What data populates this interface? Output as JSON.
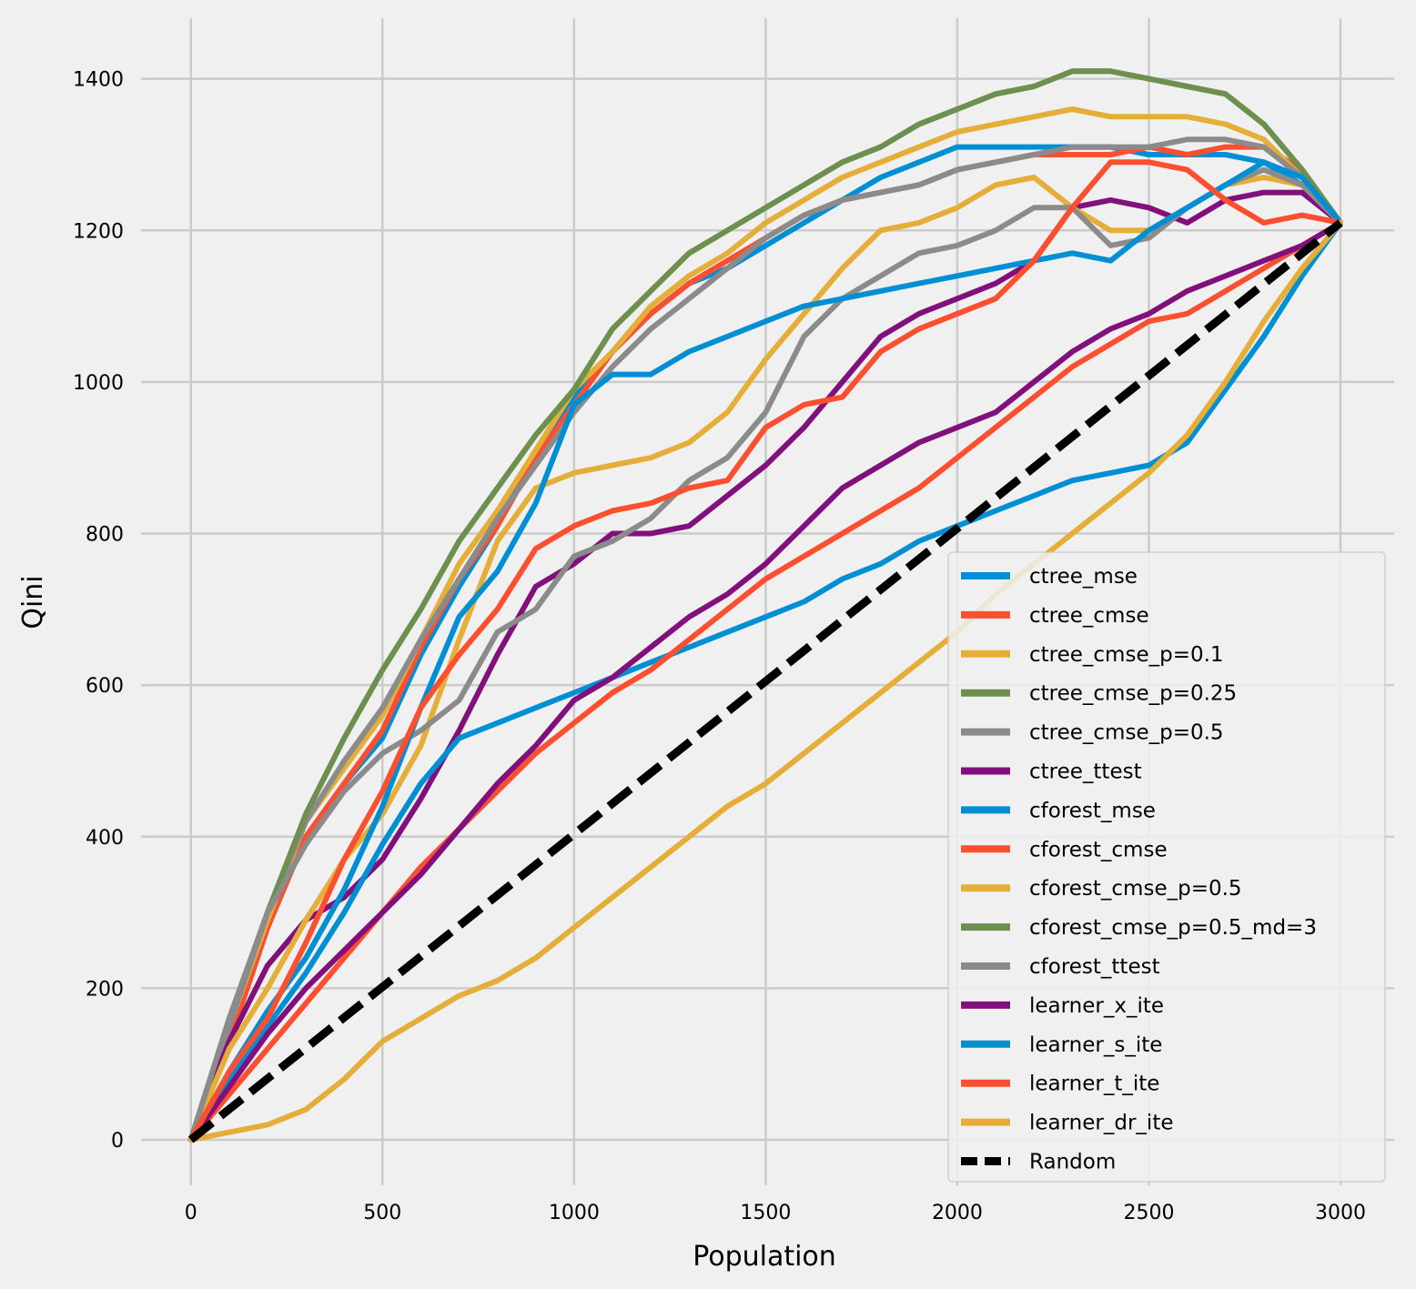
{
  "chart_data": {
    "type": "line",
    "title": "",
    "xlabel": "Population",
    "ylabel": "Qini",
    "xlim": [
      -130,
      3140
    ],
    "ylim": [
      -60,
      1480
    ],
    "xticks": [
      0,
      500,
      1000,
      1500,
      2000,
      2500,
      3000
    ],
    "yticks": [
      0,
      200,
      400,
      600,
      800,
      1000,
      1200,
      1400
    ],
    "grid": true,
    "legend_position": "lower right",
    "series": [
      {
        "name": "ctree_mse",
        "color": "#008fd5",
        "x": [
          0,
          100,
          200,
          300,
          400,
          500,
          600,
          700,
          800,
          900,
          1000,
          1100,
          1200,
          1300,
          1400,
          1500,
          1600,
          1700,
          1800,
          1900,
          2000,
          2100,
          2200,
          2300,
          2400,
          2500,
          2600,
          2700,
          2800,
          2900,
          3000
        ],
        "y": [
          0,
          130,
          280,
          400,
          470,
          530,
          640,
          730,
          810,
          910,
          980,
          1040,
          1090,
          1130,
          1150,
          1180,
          1210,
          1240,
          1270,
          1290,
          1310,
          1310,
          1310,
          1310,
          1310,
          1300,
          1300,
          1300,
          1290,
          1260,
          1210
        ]
      },
      {
        "name": "ctree_cmse",
        "color": "#fc4f30",
        "x": [
          0,
          100,
          200,
          300,
          400,
          500,
          600,
          700,
          800,
          900,
          1000,
          1100,
          1200,
          1300,
          1400,
          1500,
          1600,
          1700,
          1800,
          1900,
          2000,
          2100,
          2200,
          2300,
          2400,
          2500,
          2600,
          2700,
          2800,
          2900,
          3000
        ],
        "y": [
          0,
          130,
          280,
          400,
          470,
          540,
          650,
          740,
          810,
          900,
          970,
          1040,
          1090,
          1130,
          1160,
          1190,
          1220,
          1240,
          1250,
          1260,
          1280,
          1290,
          1300,
          1300,
          1300,
          1310,
          1300,
          1310,
          1310,
          1280,
          1210
        ]
      },
      {
        "name": "ctree_cmse_p=0.1",
        "color": "#e5ae38",
        "x": [
          0,
          100,
          200,
          300,
          400,
          500,
          600,
          700,
          800,
          900,
          1000,
          1100,
          1200,
          1300,
          1400,
          1500,
          1600,
          1700,
          1800,
          1900,
          2000,
          2100,
          2200,
          2300,
          2400,
          2500,
          2600,
          2700,
          2800,
          2900,
          3000
        ],
        "y": [
          0,
          150,
          290,
          420,
          490,
          560,
          660,
          760,
          830,
          910,
          990,
          1040,
          1100,
          1140,
          1170,
          1210,
          1240,
          1270,
          1290,
          1310,
          1330,
          1340,
          1350,
          1360,
          1350,
          1350,
          1350,
          1340,
          1320,
          1270,
          1210
        ]
      },
      {
        "name": "ctree_cmse_p=0.25",
        "color": "#6d904f",
        "x": [
          0,
          100,
          200,
          300,
          400,
          500,
          600,
          700,
          800,
          900,
          1000,
          1100,
          1200,
          1300,
          1400,
          1500,
          1600,
          1700,
          1800,
          1900,
          2000,
          2100,
          2200,
          2300,
          2400,
          2500,
          2600,
          2700,
          2800,
          2900,
          3000
        ],
        "y": [
          0,
          160,
          300,
          430,
          530,
          620,
          700,
          790,
          860,
          930,
          990,
          1070,
          1120,
          1170,
          1200,
          1230,
          1260,
          1290,
          1310,
          1340,
          1360,
          1380,
          1390,
          1410,
          1410,
          1400,
          1390,
          1380,
          1340,
          1280,
          1210
        ]
      },
      {
        "name": "ctree_cmse_p=0.5",
        "color": "#8b8b8b",
        "x": [
          0,
          100,
          200,
          300,
          400,
          500,
          600,
          700,
          800,
          900,
          1000,
          1100,
          1200,
          1300,
          1400,
          1500,
          1600,
          1700,
          1800,
          1900,
          2000,
          2100,
          2200,
          2300,
          2400,
          2500,
          2600,
          2700,
          2800,
          2900,
          3000
        ],
        "y": [
          0,
          150,
          300,
          420,
          500,
          570,
          660,
          740,
          820,
          890,
          960,
          1020,
          1070,
          1110,
          1150,
          1190,
          1220,
          1240,
          1250,
          1260,
          1280,
          1290,
          1300,
          1310,
          1310,
          1310,
          1320,
          1320,
          1310,
          1270,
          1210
        ]
      },
      {
        "name": "ctree_ttest",
        "color": "#810f7c",
        "x": [
          0,
          100,
          200,
          300,
          400,
          500,
          600,
          700,
          800,
          900,
          1000,
          1100,
          1200,
          1300,
          1400,
          1500,
          1600,
          1700,
          1800,
          1900,
          2000,
          2100,
          2200,
          2300,
          2400,
          2500,
          2600,
          2700,
          2800,
          2900,
          3000
        ],
        "y": [
          0,
          130,
          230,
          290,
          320,
          370,
          450,
          540,
          640,
          730,
          760,
          800,
          800,
          810,
          850,
          890,
          940,
          1000,
          1060,
          1090,
          1110,
          1130,
          1160,
          1230,
          1240,
          1230,
          1210,
          1240,
          1250,
          1250,
          1210
        ]
      },
      {
        "name": "cforest_mse",
        "color": "#008fd5",
        "x": [
          0,
          100,
          200,
          300,
          400,
          500,
          600,
          700,
          800,
          900,
          1000,
          1100,
          1200,
          1300,
          1400,
          1500,
          1600,
          1700,
          1800,
          1900,
          2000,
          2100,
          2200,
          2300,
          2400,
          2500,
          2600,
          2700,
          2800,
          2900,
          3000
        ],
        "y": [
          0,
          80,
          150,
          220,
          300,
          390,
          470,
          530,
          550,
          570,
          590,
          610,
          630,
          650,
          670,
          690,
          710,
          740,
          760,
          790,
          810,
          830,
          850,
          870,
          880,
          890,
          920,
          990,
          1060,
          1140,
          1210
        ]
      },
      {
        "name": "cforest_cmse",
        "color": "#fc4f30",
        "x": [
          0,
          100,
          200,
          300,
          400,
          500,
          600,
          700,
          800,
          900,
          1000,
          1100,
          1200,
          1300,
          1400,
          1500,
          1600,
          1700,
          1800,
          1900,
          2000,
          2100,
          2200,
          2300,
          2400,
          2500,
          2600,
          2700,
          2800,
          2900,
          3000
        ],
        "y": [
          0,
          60,
          120,
          180,
          240,
          300,
          360,
          410,
          460,
          510,
          550,
          590,
          620,
          660,
          700,
          740,
          770,
          800,
          830,
          860,
          900,
          940,
          980,
          1020,
          1050,
          1080,
          1090,
          1120,
          1150,
          1180,
          1210
        ]
      },
      {
        "name": "cforest_cmse_p=0.5",
        "color": "#e5ae38",
        "x": [
          0,
          100,
          200,
          300,
          400,
          500,
          600,
          700,
          800,
          900,
          1000,
          1100,
          1200,
          1300,
          1400,
          1500,
          1600,
          1700,
          1800,
          1900,
          2000,
          2100,
          2200,
          2300,
          2400,
          2500,
          2600,
          2700,
          2800,
          2900,
          3000
        ],
        "y": [
          0,
          120,
          200,
          290,
          370,
          430,
          520,
          660,
          790,
          860,
          880,
          890,
          900,
          920,
          960,
          1030,
          1090,
          1150,
          1200,
          1210,
          1230,
          1260,
          1270,
          1230,
          1200,
          1200,
          1230,
          1260,
          1270,
          1260,
          1210
        ]
      },
      {
        "name": "cforest_cmse_p=0.5_md=3",
        "color": "#6d904f",
        "x": [
          0,
          100,
          200,
          300,
          400,
          500,
          600,
          700,
          800,
          900,
          1000,
          1100,
          1200,
          1300,
          1400,
          1500,
          1600,
          1700,
          1800,
          1900,
          2000,
          2100,
          2200,
          2300,
          2400,
          2500,
          2600,
          2700,
          2800,
          2900,
          3000
        ],
        "y": [
          0,
          160,
          300,
          430,
          530,
          620,
          700,
          790,
          860,
          930,
          990,
          1070,
          1120,
          1170,
          1200,
          1230,
          1260,
          1290,
          1310,
          1340,
          1360,
          1380,
          1390,
          1410,
          1410,
          1400,
          1390,
          1380,
          1340,
          1280,
          1210
        ]
      },
      {
        "name": "cforest_ttest",
        "color": "#8b8b8b",
        "x": [
          0,
          100,
          200,
          300,
          400,
          500,
          600,
          700,
          800,
          900,
          1000,
          1100,
          1200,
          1300,
          1400,
          1500,
          1600,
          1700,
          1800,
          1900,
          2000,
          2100,
          2200,
          2300,
          2400,
          2500,
          2600,
          2700,
          2800,
          2900,
          3000
        ],
        "y": [
          0,
          160,
          300,
          390,
          460,
          510,
          540,
          580,
          670,
          700,
          770,
          790,
          820,
          870,
          900,
          960,
          1060,
          1110,
          1140,
          1170,
          1180,
          1200,
          1230,
          1230,
          1180,
          1190,
          1230,
          1260,
          1280,
          1260,
          1210
        ]
      },
      {
        "name": "learner_x_ite",
        "color": "#810f7c",
        "x": [
          0,
          100,
          200,
          300,
          400,
          500,
          600,
          700,
          800,
          900,
          1000,
          1100,
          1200,
          1300,
          1400,
          1500,
          1600,
          1700,
          1800,
          1900,
          2000,
          2100,
          2200,
          2300,
          2400,
          2500,
          2600,
          2700,
          2800,
          2900,
          3000
        ],
        "y": [
          0,
          70,
          140,
          200,
          250,
          300,
          350,
          410,
          470,
          520,
          580,
          610,
          650,
          690,
          720,
          760,
          810,
          860,
          890,
          920,
          940,
          960,
          1000,
          1040,
          1070,
          1090,
          1120,
          1140,
          1160,
          1180,
          1210
        ]
      },
      {
        "name": "learner_s_ite",
        "color": "#008fd5",
        "x": [
          0,
          100,
          200,
          300,
          400,
          500,
          600,
          700,
          800,
          900,
          1000,
          1100,
          1200,
          1300,
          1400,
          1500,
          1600,
          1700,
          1800,
          1900,
          2000,
          2100,
          2200,
          2300,
          2400,
          2500,
          2600,
          2700,
          2800,
          2900,
          3000
        ],
        "y": [
          0,
          90,
          170,
          240,
          330,
          440,
          570,
          690,
          750,
          840,
          970,
          1010,
          1010,
          1040,
          1060,
          1080,
          1100,
          1110,
          1120,
          1130,
          1140,
          1150,
          1160,
          1170,
          1160,
          1200,
          1230,
          1260,
          1290,
          1270,
          1210
        ]
      },
      {
        "name": "learner_t_ite",
        "color": "#fc4f30",
        "x": [
          0,
          100,
          200,
          300,
          400,
          500,
          600,
          700,
          800,
          900,
          1000,
          1100,
          1200,
          1300,
          1400,
          1500,
          1600,
          1700,
          1800,
          1900,
          2000,
          2100,
          2200,
          2300,
          2400,
          2500,
          2600,
          2700,
          2800,
          2900,
          3000
        ],
        "y": [
          0,
          90,
          160,
          260,
          370,
          460,
          570,
          640,
          700,
          780,
          810,
          830,
          840,
          860,
          870,
          940,
          970,
          980,
          1040,
          1070,
          1090,
          1110,
          1160,
          1230,
          1290,
          1290,
          1280,
          1240,
          1210,
          1220,
          1210
        ]
      },
      {
        "name": "learner_dr_ite",
        "color": "#e5ae38",
        "x": [
          0,
          100,
          200,
          300,
          400,
          500,
          600,
          700,
          800,
          900,
          1000,
          1100,
          1200,
          1300,
          1400,
          1500,
          1600,
          1700,
          1800,
          1900,
          2000,
          2100,
          2200,
          2300,
          2400,
          2500,
          2600,
          2700,
          2800,
          2900,
          3000
        ],
        "y": [
          0,
          10,
          20,
          40,
          80,
          130,
          160,
          190,
          210,
          240,
          280,
          320,
          360,
          400,
          440,
          470,
          510,
          550,
          590,
          630,
          670,
          720,
          760,
          800,
          840,
          880,
          930,
          1000,
          1080,
          1150,
          1210
        ]
      },
      {
        "name": "Random",
        "color": "#000000",
        "dashed": true,
        "x": [
          0,
          3000
        ],
        "y": [
          0,
          1210
        ]
      }
    ]
  }
}
